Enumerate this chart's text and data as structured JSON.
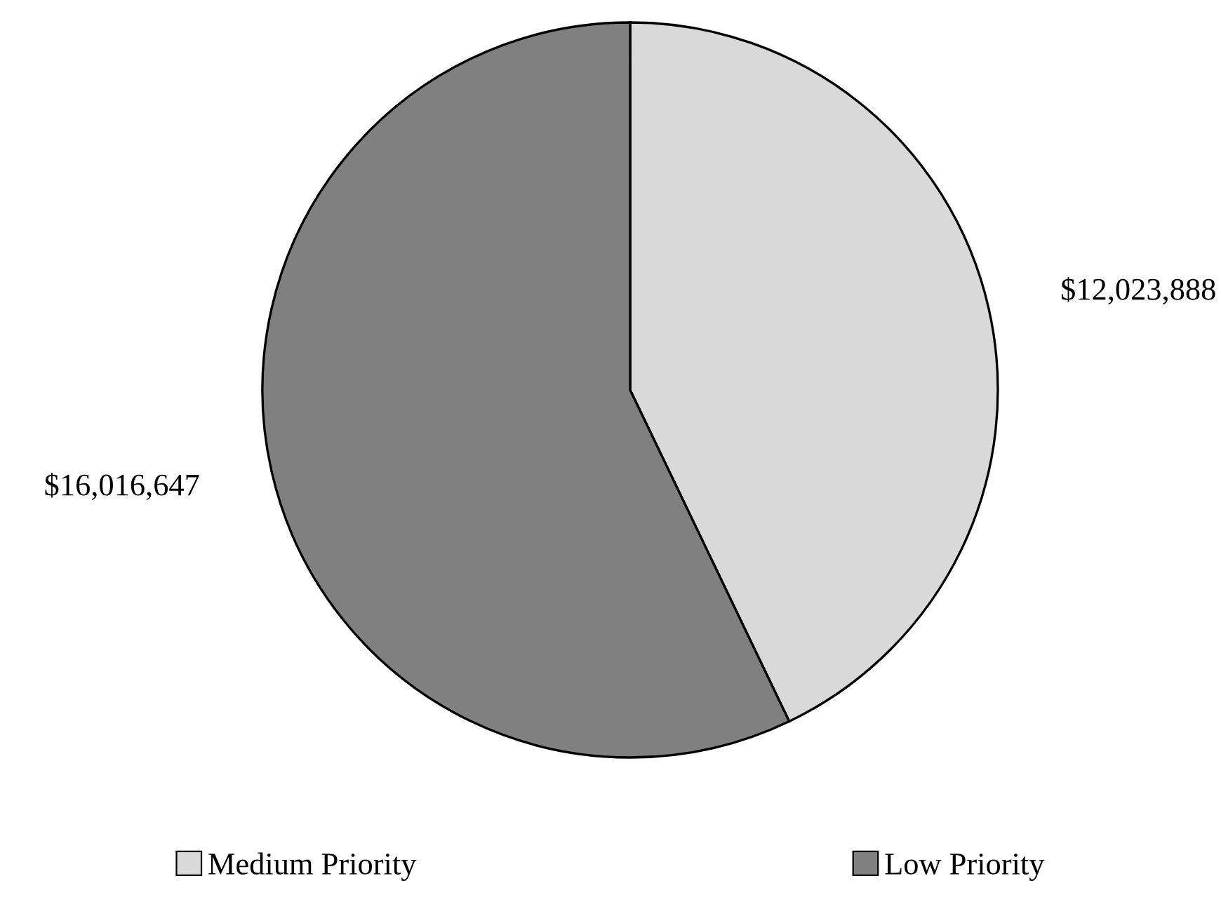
{
  "chart_data": {
    "type": "pie",
    "categories": [
      "Medium Priority",
      "Low Priority"
    ],
    "values": [
      12023888,
      16016647
    ],
    "value_labels": [
      "$12,023,888",
      "$16,016,647"
    ],
    "colors": [
      "#d9d9d9",
      "#808080"
    ],
    "legend": "bottom"
  }
}
